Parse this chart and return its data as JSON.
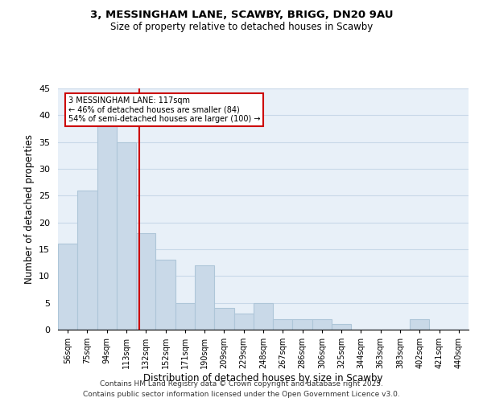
{
  "title1": "3, MESSINGHAM LANE, SCAWBY, BRIGG, DN20 9AU",
  "title2": "Size of property relative to detached houses in Scawby",
  "xlabel": "Distribution of detached houses by size in Scawby",
  "ylabel": "Number of detached properties",
  "categories": [
    "56sqm",
    "75sqm",
    "94sqm",
    "113sqm",
    "132sqm",
    "152sqm",
    "171sqm",
    "190sqm",
    "209sqm",
    "229sqm",
    "248sqm",
    "267sqm",
    "286sqm",
    "306sqm",
    "325sqm",
    "344sqm",
    "363sqm",
    "383sqm",
    "402sqm",
    "421sqm",
    "440sqm"
  ],
  "values": [
    16,
    26,
    38,
    35,
    18,
    13,
    5,
    12,
    4,
    3,
    5,
    2,
    2,
    2,
    1,
    0,
    0,
    0,
    2,
    0,
    0
  ],
  "bar_color": "#c9d9e8",
  "bar_edgecolor": "#aec6d8",
  "bar_linewidth": 0.8,
  "vline_x": 3.65,
  "vline_color": "#cc0000",
  "annotation_text": "3 MESSINGHAM LANE: 117sqm\n← 46% of detached houses are smaller (84)\n54% of semi-detached houses are larger (100) →",
  "annotation_box_color": "white",
  "annotation_box_edgecolor": "#cc0000",
  "grid_color": "#c8d8e8",
  "background_color": "#e8f0f8",
  "ylim": [
    0,
    45
  ],
  "yticks": [
    0,
    5,
    10,
    15,
    20,
    25,
    30,
    35,
    40,
    45
  ],
  "footer_text1": "Contains HM Land Registry data © Crown copyright and database right 2025.",
  "footer_text2": "Contains public sector information licensed under the Open Government Licence v3.0."
}
